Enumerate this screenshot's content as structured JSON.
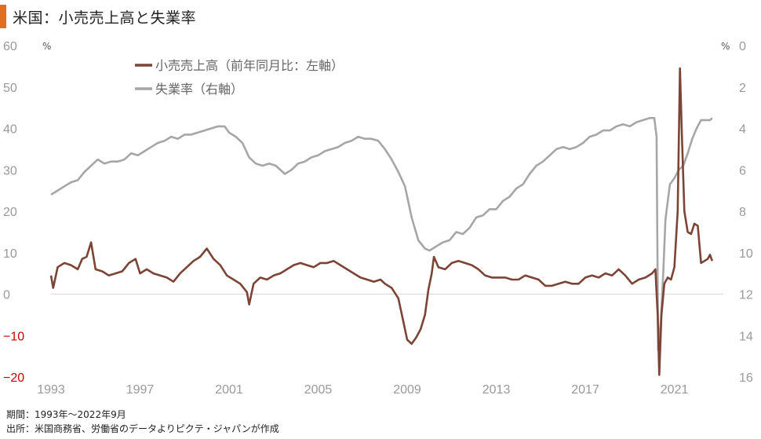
{
  "title": "米国：小売売上高と失業率",
  "colors": {
    "accent": "#e07020",
    "retail": "#7b4436",
    "unemployment": "#a6a6a6",
    "negative_tick": "#cc0000"
  },
  "footer": {
    "period": "期間：1993年～2022年9月",
    "source": "出所：米国商務省、労働省のデータよりピクテ・ジャパンが作成"
  },
  "chart_data": {
    "type": "line",
    "x_ticks": [
      "1993",
      "1997",
      "2001",
      "2005",
      "2009",
      "2013",
      "2017",
      "2021"
    ],
    "left_axis": {
      "unit": "%",
      "ylim": [
        -20,
        60
      ],
      "ticks": [
        "60",
        "50",
        "40",
        "30",
        "20",
        "10",
        "0",
        "-10",
        "-20"
      ]
    },
    "right_axis": {
      "unit": "%",
      "ylim": [
        0,
        16
      ],
      "inverted": true,
      "ticks": [
        "0",
        "2",
        "4",
        "6",
        "8",
        "10",
        "12",
        "14",
        "16"
      ]
    },
    "legend": [
      "小売売上高（前年同月比：左軸）",
      "失業率（右軸）"
    ],
    "series": [
      {
        "name": "小売売上高（前年同月比：左軸）",
        "axis": "left",
        "points": [
          [
            1993.0,
            4.5
          ],
          [
            1993.1,
            1.5
          ],
          [
            1993.3,
            6.5
          ],
          [
            1993.6,
            7.5
          ],
          [
            1993.9,
            7.0
          ],
          [
            1994.2,
            6.0
          ],
          [
            1994.4,
            8.5
          ],
          [
            1994.6,
            9.0
          ],
          [
            1994.8,
            12.5
          ],
          [
            1995.0,
            6.0
          ],
          [
            1995.3,
            5.5
          ],
          [
            1995.6,
            4.5
          ],
          [
            1995.9,
            5.0
          ],
          [
            1996.2,
            5.5
          ],
          [
            1996.5,
            7.5
          ],
          [
            1996.8,
            8.5
          ],
          [
            1997.0,
            5.0
          ],
          [
            1997.3,
            6.0
          ],
          [
            1997.6,
            5.0
          ],
          [
            1997.9,
            4.5
          ],
          [
            1998.2,
            4.0
          ],
          [
            1998.5,
            3.0
          ],
          [
            1998.8,
            5.0
          ],
          [
            1999.1,
            6.5
          ],
          [
            1999.4,
            8.0
          ],
          [
            1999.7,
            9.0
          ],
          [
            2000.0,
            11.0
          ],
          [
            2000.3,
            8.5
          ],
          [
            2000.6,
            7.0
          ],
          [
            2000.9,
            4.5
          ],
          [
            2001.2,
            3.5
          ],
          [
            2001.5,
            2.5
          ],
          [
            2001.8,
            0.5
          ],
          [
            2001.9,
            -2.5
          ],
          [
            2002.1,
            2.5
          ],
          [
            2002.4,
            4.0
          ],
          [
            2002.7,
            3.5
          ],
          [
            2003.0,
            4.5
          ],
          [
            2003.3,
            5.0
          ],
          [
            2003.6,
            6.0
          ],
          [
            2003.9,
            7.0
          ],
          [
            2004.2,
            7.5
          ],
          [
            2004.5,
            7.0
          ],
          [
            2004.8,
            6.5
          ],
          [
            2005.1,
            7.5
          ],
          [
            2005.4,
            7.5
          ],
          [
            2005.7,
            8.0
          ],
          [
            2006.0,
            7.0
          ],
          [
            2006.3,
            6.0
          ],
          [
            2006.6,
            5.0
          ],
          [
            2006.9,
            4.0
          ],
          [
            2007.2,
            3.5
          ],
          [
            2007.5,
            3.0
          ],
          [
            2007.8,
            3.5
          ],
          [
            2008.0,
            2.5
          ],
          [
            2008.3,
            1.5
          ],
          [
            2008.6,
            -1.0
          ],
          [
            2008.8,
            -6.0
          ],
          [
            2009.0,
            -11.0
          ],
          [
            2009.2,
            -12.0
          ],
          [
            2009.4,
            -10.5
          ],
          [
            2009.6,
            -8.5
          ],
          [
            2009.8,
            -5.0
          ],
          [
            2009.95,
            1.0
          ],
          [
            2010.1,
            5.0
          ],
          [
            2010.2,
            9.0
          ],
          [
            2010.4,
            6.5
          ],
          [
            2010.7,
            6.0
          ],
          [
            2011.0,
            7.5
          ],
          [
            2011.3,
            8.0
          ],
          [
            2011.6,
            7.5
          ],
          [
            2011.9,
            7.0
          ],
          [
            2012.2,
            6.0
          ],
          [
            2012.5,
            4.5
          ],
          [
            2012.8,
            4.0
          ],
          [
            2013.1,
            4.0
          ],
          [
            2013.4,
            4.0
          ],
          [
            2013.7,
            3.5
          ],
          [
            2014.0,
            3.5
          ],
          [
            2014.3,
            4.5
          ],
          [
            2014.6,
            4.0
          ],
          [
            2014.9,
            3.5
          ],
          [
            2015.2,
            2.0
          ],
          [
            2015.5,
            2.0
          ],
          [
            2015.8,
            2.5
          ],
          [
            2016.1,
            3.0
          ],
          [
            2016.4,
            2.5
          ],
          [
            2016.7,
            2.5
          ],
          [
            2017.0,
            4.0
          ],
          [
            2017.3,
            4.5
          ],
          [
            2017.6,
            4.0
          ],
          [
            2017.9,
            5.0
          ],
          [
            2018.2,
            4.5
          ],
          [
            2018.5,
            6.0
          ],
          [
            2018.8,
            4.5
          ],
          [
            2019.1,
            2.5
          ],
          [
            2019.4,
            3.5
          ],
          [
            2019.7,
            4.0
          ],
          [
            2020.0,
            5.0
          ],
          [
            2020.15,
            6.0
          ],
          [
            2020.25,
            -5.0
          ],
          [
            2020.32,
            -19.5
          ],
          [
            2020.42,
            -5.0
          ],
          [
            2020.55,
            2.5
          ],
          [
            2020.7,
            4.0
          ],
          [
            2020.85,
            3.5
          ],
          [
            2021.0,
            6.5
          ],
          [
            2021.15,
            20.0
          ],
          [
            2021.25,
            54.5
          ],
          [
            2021.33,
            40.0
          ],
          [
            2021.45,
            20.0
          ],
          [
            2021.6,
            15.0
          ],
          [
            2021.75,
            14.5
          ],
          [
            2021.9,
            17.0
          ],
          [
            2022.05,
            16.5
          ],
          [
            2022.2,
            7.5
          ],
          [
            2022.35,
            8.0
          ],
          [
            2022.5,
            8.5
          ],
          [
            2022.6,
            9.5
          ],
          [
            2022.7,
            8.0
          ]
        ]
      },
      {
        "name": "失業率（右軸）",
        "axis": "right",
        "points": [
          [
            1993.0,
            7.2
          ],
          [
            1993.3,
            7.0
          ],
          [
            1993.6,
            6.8
          ],
          [
            1993.9,
            6.6
          ],
          [
            1994.2,
            6.5
          ],
          [
            1994.5,
            6.1
          ],
          [
            1994.8,
            5.8
          ],
          [
            1995.1,
            5.5
          ],
          [
            1995.4,
            5.7
          ],
          [
            1995.7,
            5.6
          ],
          [
            1996.0,
            5.6
          ],
          [
            1996.3,
            5.5
          ],
          [
            1996.6,
            5.2
          ],
          [
            1996.9,
            5.3
          ],
          [
            1997.2,
            5.1
          ],
          [
            1997.5,
            4.9
          ],
          [
            1997.8,
            4.7
          ],
          [
            1998.1,
            4.6
          ],
          [
            1998.4,
            4.4
          ],
          [
            1998.7,
            4.5
          ],
          [
            1999.0,
            4.3
          ],
          [
            1999.3,
            4.3
          ],
          [
            1999.6,
            4.2
          ],
          [
            1999.9,
            4.1
          ],
          [
            2000.2,
            4.0
          ],
          [
            2000.5,
            3.9
          ],
          [
            2000.8,
            3.9
          ],
          [
            2001.0,
            4.2
          ],
          [
            2001.3,
            4.4
          ],
          [
            2001.6,
            4.7
          ],
          [
            2001.9,
            5.4
          ],
          [
            2002.2,
            5.7
          ],
          [
            2002.5,
            5.8
          ],
          [
            2002.8,
            5.7
          ],
          [
            2003.1,
            5.8
          ],
          [
            2003.5,
            6.2
          ],
          [
            2003.8,
            6.0
          ],
          [
            2004.1,
            5.7
          ],
          [
            2004.4,
            5.6
          ],
          [
            2004.7,
            5.4
          ],
          [
            2005.0,
            5.3
          ],
          [
            2005.3,
            5.1
          ],
          [
            2005.6,
            5.0
          ],
          [
            2005.9,
            4.9
          ],
          [
            2006.2,
            4.7
          ],
          [
            2006.5,
            4.6
          ],
          [
            2006.8,
            4.4
          ],
          [
            2007.1,
            4.5
          ],
          [
            2007.4,
            4.5
          ],
          [
            2007.7,
            4.6
          ],
          [
            2008.0,
            5.0
          ],
          [
            2008.3,
            5.5
          ],
          [
            2008.6,
            6.1
          ],
          [
            2008.9,
            6.8
          ],
          [
            2009.2,
            8.3
          ],
          [
            2009.5,
            9.4
          ],
          [
            2009.8,
            9.8
          ],
          [
            2010.0,
            9.9
          ],
          [
            2010.3,
            9.7
          ],
          [
            2010.6,
            9.5
          ],
          [
            2010.9,
            9.4
          ],
          [
            2011.2,
            9.0
          ],
          [
            2011.5,
            9.1
          ],
          [
            2011.8,
            8.8
          ],
          [
            2012.1,
            8.3
          ],
          [
            2012.4,
            8.2
          ],
          [
            2012.7,
            7.9
          ],
          [
            2013.0,
            7.9
          ],
          [
            2013.3,
            7.5
          ],
          [
            2013.6,
            7.3
          ],
          [
            2013.9,
            6.9
          ],
          [
            2014.2,
            6.7
          ],
          [
            2014.5,
            6.2
          ],
          [
            2014.8,
            5.8
          ],
          [
            2015.1,
            5.6
          ],
          [
            2015.4,
            5.3
          ],
          [
            2015.7,
            5.0
          ],
          [
            2016.0,
            4.9
          ],
          [
            2016.3,
            5.0
          ],
          [
            2016.6,
            4.9
          ],
          [
            2016.9,
            4.7
          ],
          [
            2017.2,
            4.4
          ],
          [
            2017.5,
            4.3
          ],
          [
            2017.8,
            4.1
          ],
          [
            2018.1,
            4.1
          ],
          [
            2018.4,
            3.9
          ],
          [
            2018.7,
            3.8
          ],
          [
            2019.0,
            3.9
          ],
          [
            2019.3,
            3.7
          ],
          [
            2019.6,
            3.6
          ],
          [
            2019.9,
            3.5
          ],
          [
            2020.1,
            3.5
          ],
          [
            2020.2,
            4.4
          ],
          [
            2020.27,
            14.7
          ],
          [
            2020.4,
            13.2
          ],
          [
            2020.5,
            11.0
          ],
          [
            2020.6,
            8.4
          ],
          [
            2020.8,
            6.7
          ],
          [
            2021.0,
            6.4
          ],
          [
            2021.2,
            6.0
          ],
          [
            2021.4,
            5.8
          ],
          [
            2021.6,
            5.2
          ],
          [
            2021.8,
            4.5
          ],
          [
            2022.0,
            4.0
          ],
          [
            2022.2,
            3.6
          ],
          [
            2022.4,
            3.6
          ],
          [
            2022.6,
            3.6
          ],
          [
            2022.7,
            3.5
          ]
        ]
      }
    ]
  }
}
